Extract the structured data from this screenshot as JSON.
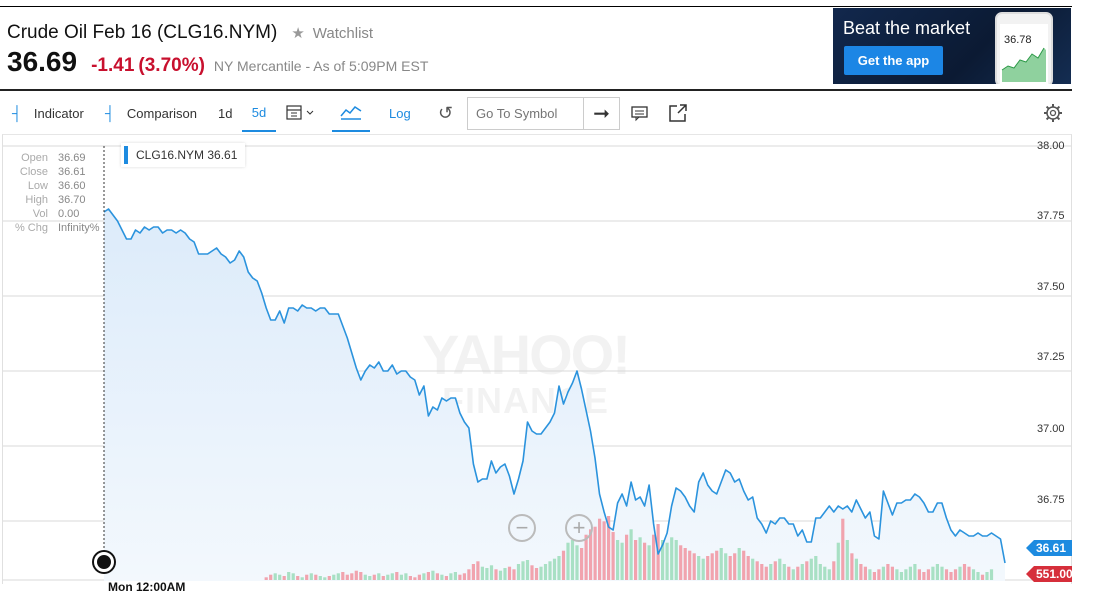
{
  "header": {
    "title": "Crude Oil Feb 16 (CLG16.NYM)",
    "watchlist_label": "Watchlist",
    "watchlist_icon": "star-icon",
    "price": "36.69",
    "change": "-1.41",
    "change_pct": "(3.70%)",
    "market_text": "NY Mercantile - As of 5:09PM EST",
    "change_color": "#c8102e"
  },
  "ad": {
    "title": "Beat the market",
    "button_label": "Get the app",
    "phone_value": "36.78"
  },
  "toolbar": {
    "indicator_label": "Indicator",
    "comparison_label": "Comparison",
    "range_1d": "1d",
    "range_5d": "5d",
    "calendar_icon": "calendar-icon",
    "chart_type_icon": "line-chart-icon",
    "log_label": "Log",
    "reset_icon": "undo-icon",
    "search_placeholder": "Go To Symbol",
    "go_icon": "arrow-right-icon",
    "compare_icon": "message-icon",
    "share_icon": "share-icon",
    "settings_icon": "gear-icon",
    "accent_color": "#1d8be0"
  },
  "ohlc": {
    "open_label": "Open",
    "open": "36.69",
    "close_label": "Close",
    "close": "36.61",
    "low_label": "Low",
    "low": "36.60",
    "high_label": "High",
    "high": "36.70",
    "vol_label": "Vol",
    "vol": "0.00",
    "chg_label": "% Chg",
    "chg": "Infinity%"
  },
  "legend": {
    "text": "CLG16.NYM 36.61"
  },
  "tags": {
    "price": "36.61",
    "volume": "551.00"
  },
  "x_label": "Mon 12:00AM",
  "watermark": {
    "line1": "YAHOO!",
    "line2": "FINANCE"
  },
  "chart_data": {
    "type": "line",
    "series": [
      {
        "name": "CLG16.NYM",
        "values": [
          37.78,
          37.79,
          37.77,
          37.75,
          37.72,
          37.69,
          37.69,
          37.72,
          37.71,
          37.73,
          37.72,
          37.73,
          37.73,
          37.71,
          37.72,
          37.72,
          37.71,
          37.72,
          37.71,
          37.69,
          37.68,
          37.64,
          37.64,
          37.64,
          37.65,
          37.66,
          37.64,
          37.63,
          37.61,
          37.62,
          37.65,
          37.63,
          37.58,
          37.56,
          37.55,
          37.51,
          37.46,
          37.42,
          37.42,
          37.45,
          37.41,
          37.46,
          37.46,
          37.45,
          37.47,
          37.46,
          37.46,
          37.45,
          37.46,
          37.46,
          37.44,
          37.44,
          37.44,
          37.4,
          37.36,
          37.31,
          37.26,
          37.22,
          37.25,
          37.27,
          37.26,
          37.28,
          37.25,
          37.25,
          37.27,
          37.24,
          37.25,
          37.25,
          37.23,
          37.22,
          37.17,
          37.2,
          37.1,
          37.13,
          37.12,
          37.16,
          37.15,
          37.16,
          37.16,
          37.11,
          37.08,
          37.06,
          36.94,
          36.88,
          36.89,
          36.89,
          36.95,
          36.91,
          36.93,
          36.94,
          36.9,
          36.84,
          36.89,
          36.95,
          37.08,
          37.05,
          37.04,
          37.04,
          37.06,
          37.08,
          37.11,
          37.2,
          37.14,
          37.18,
          37.21,
          37.25,
          37.19,
          37.12,
          37.05,
          36.96,
          36.84,
          36.78,
          36.73,
          36.72,
          36.81,
          36.84,
          36.8,
          36.88,
          36.82,
          36.83,
          36.8,
          36.87,
          36.74,
          36.64,
          36.67,
          36.71,
          36.8,
          36.86,
          36.85,
          36.83,
          36.8,
          36.78,
          36.88,
          36.91,
          36.87,
          36.85,
          36.84,
          36.88,
          36.92,
          36.91,
          36.88,
          36.89,
          36.85,
          36.82,
          36.83,
          36.76,
          36.74,
          36.71,
          36.75,
          36.74,
          36.76,
          36.76,
          36.74,
          36.74,
          36.7,
          36.72,
          36.68,
          36.68,
          36.76,
          36.76,
          36.78,
          36.8,
          36.78,
          36.8,
          36.79,
          36.8,
          36.78,
          36.82,
          36.79,
          36.76,
          36.78,
          36.7,
          36.69,
          36.85,
          36.81,
          36.77,
          36.81,
          36.81,
          36.82,
          36.82,
          36.84,
          36.83,
          36.81,
          36.78,
          36.78,
          36.81,
          36.81,
          36.76,
          36.72,
          36.7,
          36.72,
          36.71,
          36.7,
          36.7,
          36.71,
          36.7,
          36.7,
          36.71,
          36.7,
          36.69,
          36.61
        ]
      }
    ],
    "volume": [
      0,
      0,
      0,
      0,
      0,
      0,
      0,
      0,
      0,
      0,
      0,
      0,
      0,
      0,
      0,
      0,
      0,
      0,
      0,
      0,
      0,
      0,
      0,
      0,
      0,
      0,
      0,
      0,
      0,
      0,
      0,
      0,
      0,
      0,
      0,
      0,
      2,
      4,
      5,
      4,
      3,
      6,
      5,
      3,
      2,
      4,
      5,
      4,
      3,
      2,
      3,
      4,
      5,
      6,
      4,
      5,
      7,
      6,
      4,
      3,
      4,
      5,
      3,
      4,
      5,
      6,
      4,
      5,
      3,
      2,
      4,
      5,
      6,
      7,
      5,
      4,
      3,
      5,
      6,
      4,
      5,
      8,
      12,
      14,
      10,
      9,
      11,
      8,
      7,
      9,
      10,
      8,
      12,
      14,
      15,
      11,
      9,
      10,
      12,
      14,
      16,
      18,
      22,
      28,
      30,
      26,
      24,
      34,
      38,
      40,
      46,
      44,
      48,
      36,
      30,
      28,
      34,
      38,
      30,
      32,
      28,
      26,
      34,
      42,
      30,
      28,
      32,
      30,
      26,
      24,
      22,
      20,
      18,
      16,
      18,
      20,
      22,
      24,
      20,
      18,
      20,
      24,
      22,
      18,
      16,
      14,
      12,
      10,
      12,
      14,
      16,
      12,
      10,
      8,
      10,
      12,
      14,
      16,
      18,
      12,
      10,
      8,
      14,
      28,
      46,
      30,
      20,
      16,
      12,
      10,
      8,
      6,
      8,
      10,
      12,
      10,
      8,
      6,
      8,
      10,
      12,
      8,
      6,
      8,
      10,
      12,
      10,
      8,
      6,
      8,
      10,
      12,
      10,
      8,
      6,
      4,
      6,
      8
    ],
    "y_ticks": [
      "38.00",
      "37.75",
      "37.50",
      "37.25",
      "37.00",
      "36.75"
    ],
    "x_ticks": [
      "Mon 12:00AM"
    ],
    "ylim": [
      36.55,
      38.0
    ],
    "grid": true,
    "up_color": "#a8e0c4",
    "down_color": "#f1a3ae",
    "line_color": "#2b93dd"
  }
}
